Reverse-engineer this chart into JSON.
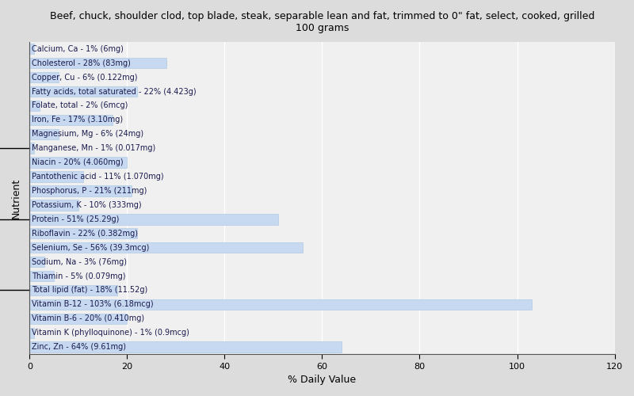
{
  "title": "Beef, chuck, shoulder clod, top blade, steak, separable lean and fat, trimmed to 0\" fat, select, cooked, grilled\n100 grams",
  "xlabel": "% Daily Value",
  "ylabel": "Nutrient",
  "xlim": [
    0,
    120
  ],
  "xticks": [
    0,
    20,
    40,
    60,
    80,
    100,
    120
  ],
  "background_color": "#dcdcdc",
  "plot_background": "#f0f0f0",
  "bar_color": "#c6d9f0",
  "bar_edge_color": "#a8c4e0",
  "nutrients": [
    {
      "label": "Calcium, Ca - 1% (6mg)",
      "value": 1,
      "tick": false
    },
    {
      "label": "Cholesterol - 28% (83mg)",
      "value": 28,
      "tick": false
    },
    {
      "label": "Copper, Cu - 6% (0.122mg)",
      "value": 6,
      "tick": false
    },
    {
      "label": "Fatty acids, total saturated - 22% (4.423g)",
      "value": 22,
      "tick": false
    },
    {
      "label": "Folate, total - 2% (6mcg)",
      "value": 2,
      "tick": false
    },
    {
      "label": "Iron, Fe - 17% (3.10mg)",
      "value": 17,
      "tick": false
    },
    {
      "label": "Magnesium, Mg - 6% (24mg)",
      "value": 6,
      "tick": false
    },
    {
      "label": "Manganese, Mn - 1% (0.017mg)",
      "value": 1,
      "tick": true
    },
    {
      "label": "Niacin - 20% (4.060mg)",
      "value": 20,
      "tick": false
    },
    {
      "label": "Pantothenic acid - 11% (1.070mg)",
      "value": 11,
      "tick": false
    },
    {
      "label": "Phosphorus, P - 21% (211mg)",
      "value": 21,
      "tick": false
    },
    {
      "label": "Potassium, K - 10% (333mg)",
      "value": 10,
      "tick": false
    },
    {
      "label": "Protein - 51% (25.29g)",
      "value": 51,
      "tick": true
    },
    {
      "label": "Riboflavin - 22% (0.382mg)",
      "value": 22,
      "tick": false
    },
    {
      "label": "Selenium, Se - 56% (39.3mcg)",
      "value": 56,
      "tick": false
    },
    {
      "label": "Sodium, Na - 3% (76mg)",
      "value": 3,
      "tick": false
    },
    {
      "label": "Thiamin - 5% (0.079mg)",
      "value": 5,
      "tick": false
    },
    {
      "label": "Total lipid (fat) - 18% (11.52g)",
      "value": 18,
      "tick": true
    },
    {
      "label": "Vitamin B-12 - 103% (6.18mcg)",
      "value": 103,
      "tick": false
    },
    {
      "label": "Vitamin B-6 - 20% (0.410mg)",
      "value": 20,
      "tick": false
    },
    {
      "label": "Vitamin K (phylloquinone) - 1% (0.9mcg)",
      "value": 1,
      "tick": false
    },
    {
      "label": "Zinc, Zn - 64% (9.61mg)",
      "value": 64,
      "tick": false
    }
  ],
  "label_fontsize": 7,
  "title_fontsize": 9,
  "axis_fontsize": 9,
  "tick_fontsize": 8
}
